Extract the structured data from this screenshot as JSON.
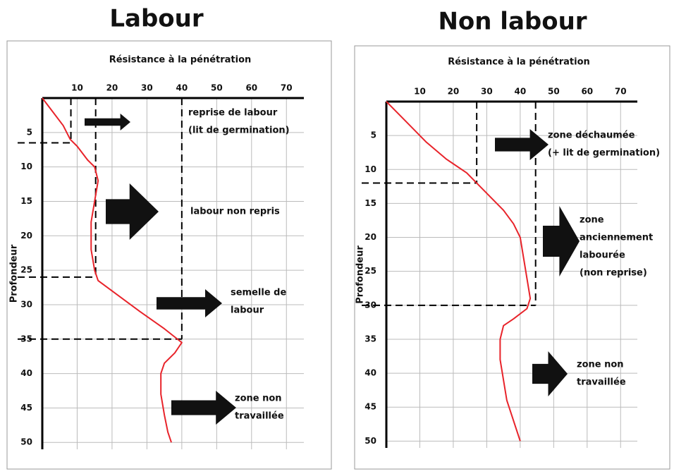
{
  "chart_data": [
    {
      "type": "line",
      "title": "Labour",
      "subtitle": "Résistance à la pénétration",
      "y_label": "Profondeur",
      "xlim": [
        0,
        75
      ],
      "ylim": [
        0,
        51
      ],
      "xticks": [
        10,
        20,
        30,
        40,
        50,
        60,
        70
      ],
      "yticks": [
        5,
        10,
        15,
        20,
        25,
        30,
        35,
        40,
        45,
        50
      ],
      "grid": true,
      "y_inverted": true,
      "series": [
        {
          "color": "#e8232a",
          "x": [
            0,
            3,
            6,
            8,
            10,
            13,
            15,
            16,
            15,
            14,
            14,
            15,
            16,
            20,
            28,
            35,
            40,
            38,
            35,
            34,
            34,
            35,
            36,
            37
          ],
          "values": [
            0,
            2,
            4,
            6,
            7,
            9,
            10,
            12,
            15,
            18,
            22,
            25,
            26.5,
            28,
            31,
            33.5,
            35.5,
            37,
            38.5,
            40,
            43,
            46,
            48.5,
            50
          ]
        }
      ],
      "guides": [
        {
          "x": 8.2,
          "depth": 6.5
        },
        {
          "x": 15.3,
          "depth": 26
        },
        {
          "x": 40,
          "depth": 35
        }
      ],
      "annotations": [
        {
          "lines": [
            "reprise de labour",
            "(lit de germination)"
          ]
        },
        {
          "lines": [
            "labour non repris"
          ]
        },
        {
          "lines": [
            "semelle de",
            "labour"
          ]
        },
        {
          "lines": [
            "zone non",
            "travaillée"
          ]
        }
      ]
    },
    {
      "type": "line",
      "title": "Non labour",
      "subtitle": "Résistance à la pénétration",
      "y_label": "Profondeur",
      "xlim": [
        0,
        75
      ],
      "ylim": [
        0,
        51
      ],
      "xticks": [
        10,
        20,
        30,
        40,
        50,
        60,
        70
      ],
      "yticks": [
        5,
        10,
        15,
        20,
        25,
        30,
        35,
        40,
        45,
        50
      ],
      "grid": true,
      "y_inverted": true,
      "series": [
        {
          "color": "#e8232a",
          "x": [
            0,
            3,
            7,
            12,
            18,
            24,
            27,
            31,
            35,
            38,
            40,
            41,
            42,
            43,
            42,
            38,
            35,
            34,
            34,
            35,
            36,
            38,
            40
          ],
          "values": [
            0,
            1.5,
            3.5,
            6,
            8.5,
            10.5,
            12,
            14,
            16,
            18,
            20,
            23,
            26,
            29,
            30.5,
            32,
            33,
            35,
            38,
            41,
            44,
            47,
            50
          ]
        }
      ],
      "guides": [
        {
          "x": 27,
          "depth": 12
        },
        {
          "x": 44.6,
          "depth": 30
        }
      ],
      "annotations": [
        {
          "lines": [
            "zone déchaumée",
            "(+ lit de germination)"
          ]
        },
        {
          "lines": [
            "zone",
            "anciennement",
            "labourée",
            "(non reprise)"
          ]
        },
        {
          "lines": [
            "zone non",
            "travaillée"
          ]
        }
      ]
    }
  ]
}
